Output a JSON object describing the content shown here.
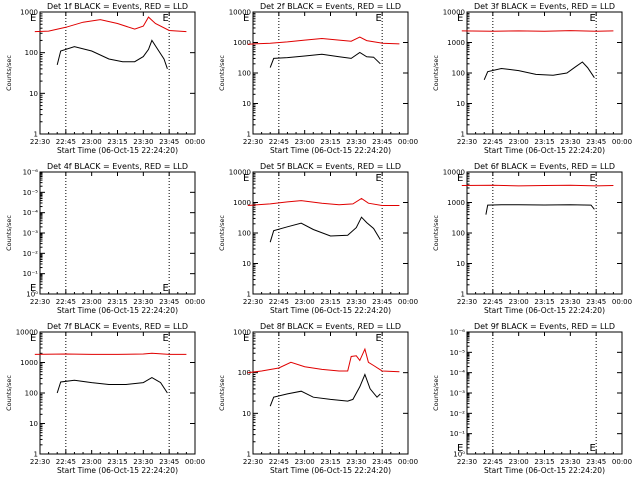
{
  "colors": {
    "events": "#000000",
    "lld": "#e00000",
    "axis": "#000000"
  },
  "chart_data": [
    {
      "type": "line",
      "panel": 1,
      "title": "Det 1f BLACK = Events, RED = LLD",
      "xlabel": "Start Time (06-Oct-15 22:24:20)",
      "ylabel": "Counts/sec",
      "x_ticks": [
        "22:30",
        "22:45",
        "23:00",
        "23:15",
        "23:30",
        "23:45",
        "00:00"
      ],
      "y_ticks": [
        "1",
        "10",
        "100",
        "1000"
      ],
      "yscale": "log",
      "ylim": [
        1,
        1000
      ],
      "markers": [
        {
          "label": "E",
          "x": "22:26"
        },
        {
          "label": "E",
          "x": "23:43"
        }
      ],
      "series": [
        {
          "role": "lld",
          "x": [
            "22:27",
            "22:35",
            "22:45",
            "22:55",
            "23:05",
            "23:15",
            "23:25",
            "23:30",
            "23:33",
            "23:37",
            "23:45",
            "23:55"
          ],
          "values": [
            330,
            340,
            420,
            560,
            650,
            520,
            380,
            450,
            750,
            520,
            350,
            330
          ]
        },
        {
          "role": "events",
          "x": [
            "22:40",
            "22:42",
            "22:50",
            "23:00",
            "23:10",
            "23:18",
            "23:25",
            "23:30",
            "23:33",
            "23:35",
            "23:39",
            "23:42",
            "23:44"
          ],
          "values": [
            50,
            110,
            140,
            110,
            70,
            60,
            60,
            80,
            120,
            200,
            110,
            70,
            40
          ]
        }
      ]
    },
    {
      "type": "line",
      "panel": 2,
      "title": "Det 2f BLACK = Events, RED = LLD",
      "xlabel": "Start Time (06-Oct-15 22:24:20)",
      "ylabel": "Counts/sec",
      "x_ticks": [
        "22:30",
        "22:45",
        "23:00",
        "23:15",
        "23:30",
        "23:45",
        "00:00"
      ],
      "y_ticks": [
        "1",
        "10",
        "100",
        "1000",
        "10000"
      ],
      "yscale": "log",
      "ylim": [
        1,
        10000
      ],
      "markers": [
        {
          "label": "E",
          "x": "22:26"
        },
        {
          "label": "E",
          "x": "23:43"
        }
      ],
      "series": [
        {
          "role": "lld",
          "x": [
            "22:27",
            "22:40",
            "22:50",
            "23:00",
            "23:10",
            "23:20",
            "23:27",
            "23:32",
            "23:36",
            "23:45",
            "23:55"
          ],
          "values": [
            880,
            950,
            1050,
            1200,
            1350,
            1200,
            1100,
            1500,
            1150,
            950,
            900
          ]
        },
        {
          "role": "events",
          "x": [
            "22:40",
            "22:42",
            "22:50",
            "23:00",
            "23:10",
            "23:20",
            "23:27",
            "23:32",
            "23:36",
            "23:40",
            "23:44"
          ],
          "values": [
            150,
            300,
            320,
            360,
            410,
            340,
            300,
            470,
            340,
            330,
            200
          ]
        }
      ]
    },
    {
      "type": "line",
      "panel": 3,
      "title": "Det 3f BLACK = Events, RED = LLD",
      "xlabel": "Start Time (06-Oct-15 22:24:20)",
      "ylabel": "Counts/sec",
      "x_ticks": [
        "22:30",
        "22:45",
        "23:00",
        "23:15",
        "23:30",
        "23:45",
        "00:00"
      ],
      "y_ticks": [
        "1",
        "10",
        "100",
        "1000",
        "10000"
      ],
      "yscale": "log",
      "ylim": [
        1,
        10000
      ],
      "markers": [
        {
          "label": "E",
          "x": "22:26"
        },
        {
          "label": "E",
          "x": "23:43"
        }
      ],
      "series": [
        {
          "role": "lld",
          "x": [
            "22:27",
            "22:45",
            "23:00",
            "23:15",
            "23:30",
            "23:45",
            "23:55"
          ],
          "values": [
            2400,
            2350,
            2400,
            2350,
            2450,
            2350,
            2400
          ]
        },
        {
          "role": "events",
          "x": [
            "22:40",
            "22:42",
            "22:50",
            "23:00",
            "23:10",
            "23:20",
            "23:28",
            "23:33",
            "23:37",
            "23:40",
            "23:44"
          ],
          "values": [
            60,
            110,
            140,
            120,
            90,
            85,
            100,
            160,
            230,
            150,
            70
          ]
        }
      ]
    },
    {
      "type": "line",
      "panel": 4,
      "title": "Det 4f BLACK = Events, RED = LLD",
      "xlabel": "Start Time (06-Oct-15 22:24:20)",
      "ylabel": "Counts/sec",
      "x_ticks": [
        "22:30",
        "22:45",
        "23:00",
        "23:15",
        "23:30",
        "23:45",
        "00:00"
      ],
      "y_ticks": [
        "10⁰",
        "10⁻¹",
        "10⁻²",
        "10⁻³",
        "10⁻⁴",
        "10⁻⁵",
        "10⁻⁶"
      ],
      "yscale": "log",
      "markers": [
        {
          "label": "E",
          "x": "22:26"
        },
        {
          "label": "E",
          "x": "23:43"
        }
      ],
      "series": []
    },
    {
      "type": "line",
      "panel": 5,
      "title": "Det 5f BLACK = Events, RED = LLD",
      "xlabel": "Start Time (06-Oct-15 22:24:20)",
      "ylabel": "Counts/sec",
      "x_ticks": [
        "22:30",
        "22:45",
        "23:00",
        "23:15",
        "23:30",
        "23:45",
        "00:00"
      ],
      "y_ticks": [
        "1",
        "10",
        "100",
        "1000",
        "10000"
      ],
      "yscale": "log",
      "ylim": [
        1,
        10000
      ],
      "markers": [
        {
          "label": "E",
          "x": "22:26"
        },
        {
          "label": "E",
          "x": "23:43"
        }
      ],
      "series": [
        {
          "role": "lld",
          "x": [
            "22:27",
            "22:40",
            "22:50",
            "22:58",
            "23:10",
            "23:20",
            "23:28",
            "23:33",
            "23:37",
            "23:45",
            "23:55"
          ],
          "values": [
            800,
            900,
            1050,
            1150,
            950,
            850,
            900,
            1350,
            950,
            800,
            800
          ]
        },
        {
          "role": "events",
          "x": [
            "22:40",
            "22:42",
            "22:50",
            "22:58",
            "23:05",
            "23:15",
            "23:25",
            "23:30",
            "23:33",
            "23:36",
            "23:40",
            "23:44"
          ],
          "values": [
            50,
            120,
            160,
            210,
            130,
            80,
            85,
            150,
            330,
            220,
            140,
            60
          ]
        }
      ]
    },
    {
      "type": "line",
      "panel": 6,
      "title": "Det 6f BLACK = Events, RED = LLD",
      "xlabel": "Start Time (06-Oct-15 22:24:20)",
      "ylabel": "Counts/sec",
      "x_ticks": [
        "22:30",
        "22:45",
        "23:00",
        "23:15",
        "23:30",
        "23:45",
        "00:00"
      ],
      "y_ticks": [
        "1",
        "10",
        "100",
        "1000",
        "10000"
      ],
      "yscale": "log",
      "ylim": [
        1,
        10000
      ],
      "markers": [
        {
          "label": "E",
          "x": "22:26"
        },
        {
          "label": "E",
          "x": "23:43"
        }
      ],
      "series": [
        {
          "role": "lld",
          "x": [
            "22:27",
            "22:45",
            "23:00",
            "23:15",
            "23:30",
            "23:45",
            "23:55"
          ],
          "values": [
            3600,
            3700,
            3500,
            3600,
            3700,
            3500,
            3600
          ]
        },
        {
          "role": "events",
          "x": [
            "22:41",
            "22:42",
            "22:50",
            "23:00",
            "23:15",
            "23:30",
            "23:38",
            "23:42",
            "23:44"
          ],
          "values": [
            400,
            820,
            850,
            840,
            830,
            850,
            830,
            820,
            600
          ]
        }
      ]
    },
    {
      "type": "line",
      "panel": 7,
      "title": "Det 7f BLACK = Events, RED = LLD",
      "xlabel": "Start Time (06-Oct-15 22:24:20)",
      "ylabel": "Counts/sec",
      "x_ticks": [
        "22:30",
        "22:45",
        "23:00",
        "23:15",
        "23:30",
        "23:45",
        "00:00"
      ],
      "y_ticks": [
        "1",
        "10",
        "100",
        "1000",
        "10000"
      ],
      "yscale": "log",
      "ylim": [
        1,
        10000
      ],
      "markers": [
        {
          "label": "E",
          "x": "22:26"
        },
        {
          "label": "E",
          "x": "23:43"
        }
      ],
      "series": [
        {
          "role": "lld",
          "x": [
            "22:27",
            "22:45",
            "23:00",
            "23:15",
            "23:30",
            "23:35",
            "23:45",
            "23:55"
          ],
          "values": [
            1850,
            1900,
            1850,
            1850,
            1900,
            2000,
            1850,
            1850
          ]
        },
        {
          "role": "events",
          "x": [
            "22:40",
            "22:42",
            "22:50",
            "23:00",
            "23:10",
            "23:20",
            "23:30",
            "23:35",
            "23:40",
            "23:44"
          ],
          "values": [
            100,
            230,
            260,
            220,
            190,
            190,
            220,
            320,
            220,
            100
          ]
        }
      ]
    },
    {
      "type": "line",
      "panel": 8,
      "title": "Det 8f BLACK = Events, RED = LLD",
      "xlabel": "Start Time (06-Oct-15 22:24:20)",
      "ylabel": "Counts/sec",
      "x_ticks": [
        "22:30",
        "22:45",
        "23:00",
        "23:15",
        "23:30",
        "23:45",
        "00:00"
      ],
      "y_ticks": [
        "1",
        "10",
        "100",
        "1000"
      ],
      "yscale": "log",
      "ylim": [
        1,
        1000
      ],
      "markers": [
        {
          "label": "E",
          "x": "22:26"
        },
        {
          "label": "E",
          "x": "23:43"
        }
      ],
      "series": [
        {
          "role": "lld",
          "x": [
            "22:27",
            "22:35",
            "22:45",
            "22:52",
            "23:00",
            "23:10",
            "23:20",
            "23:25",
            "23:27",
            "23:30",
            "23:32",
            "23:35",
            "23:37",
            "23:40",
            "23:45",
            "23:55"
          ],
          "values": [
            100,
            110,
            130,
            180,
            140,
            120,
            110,
            110,
            250,
            260,
            200,
            380,
            180,
            150,
            110,
            105
          ]
        },
        {
          "role": "events",
          "x": [
            "22:40",
            "22:42",
            "22:50",
            "22:58",
            "23:05",
            "23:15",
            "23:25",
            "23:28",
            "23:32",
            "23:35",
            "23:38",
            "23:42",
            "23:44"
          ],
          "values": [
            15,
            25,
            30,
            35,
            25,
            22,
            20,
            22,
            45,
            90,
            40,
            25,
            30
          ]
        }
      ]
    },
    {
      "type": "line",
      "panel": 9,
      "title": "Det 9f BLACK = Events, RED = LLD",
      "xlabel": "Start Time (06-Oct-15 22:24:20)",
      "ylabel": "Counts/sec",
      "x_ticks": [
        "22:30",
        "22:45",
        "23:00",
        "23:15",
        "23:30",
        "23:45",
        "00:00"
      ],
      "y_ticks": [
        "10⁰",
        "10⁻¹",
        "10⁻²",
        "10⁻³",
        "10⁻⁴",
        "10⁻⁵",
        "10⁻⁶"
      ],
      "yscale": "log",
      "markers": [
        {
          "label": "E",
          "x": "22:26"
        },
        {
          "label": "E",
          "x": "23:43"
        }
      ],
      "series": []
    }
  ]
}
